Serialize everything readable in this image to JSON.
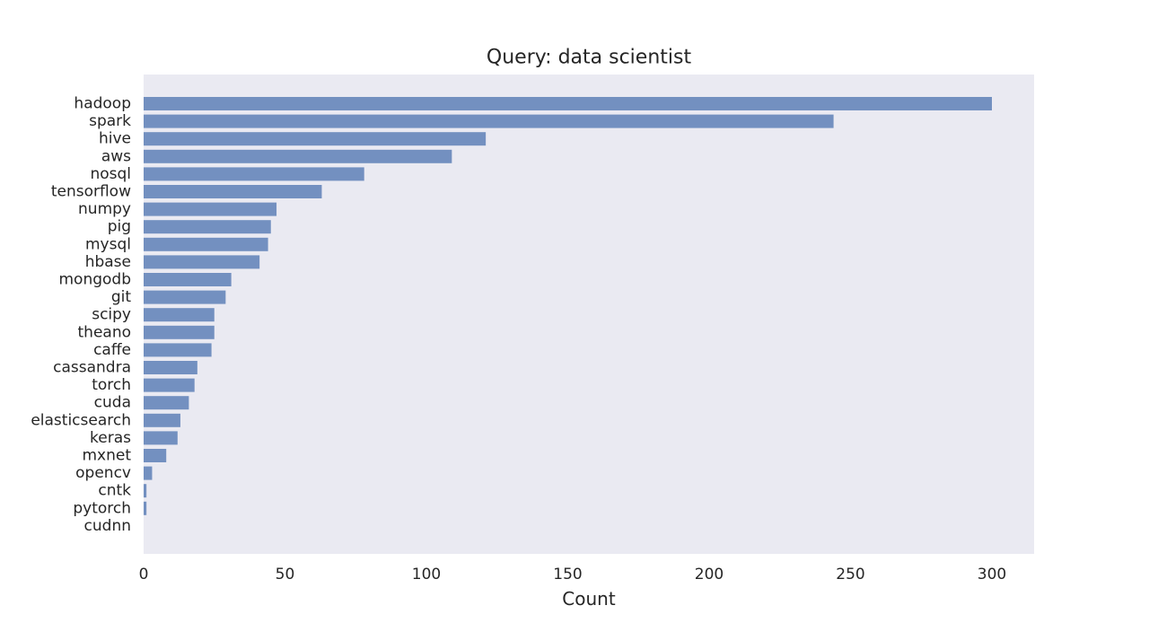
{
  "chart_data": {
    "type": "bar",
    "orientation": "horizontal",
    "title": "Query: data scientist",
    "xlabel": "Count",
    "ylabel": "",
    "xlim": [
      0,
      315
    ],
    "x_ticks": [
      0,
      50,
      100,
      150,
      200,
      250,
      300
    ],
    "grid": false,
    "legend": "none",
    "categories": [
      "hadoop",
      "spark",
      "hive",
      "aws",
      "nosql",
      "tensorflow",
      "numpy",
      "pig",
      "mysql",
      "hbase",
      "mongodb",
      "git",
      "scipy",
      "theano",
      "caffe",
      "cassandra",
      "torch",
      "cuda",
      "elasticsearch",
      "keras",
      "mxnet",
      "opencv",
      "cntk",
      "pytorch",
      "cudnn"
    ],
    "values": [
      300,
      244,
      121,
      109,
      78,
      63,
      47,
      45,
      44,
      41,
      31,
      29,
      25,
      25,
      24,
      19,
      18,
      16,
      13,
      12,
      8,
      3,
      1,
      1,
      0
    ],
    "colors": {
      "bar": "#7390c0",
      "plot_background": "#eaeaf2",
      "page_background": "#ffffff",
      "text": "#262626"
    }
  }
}
